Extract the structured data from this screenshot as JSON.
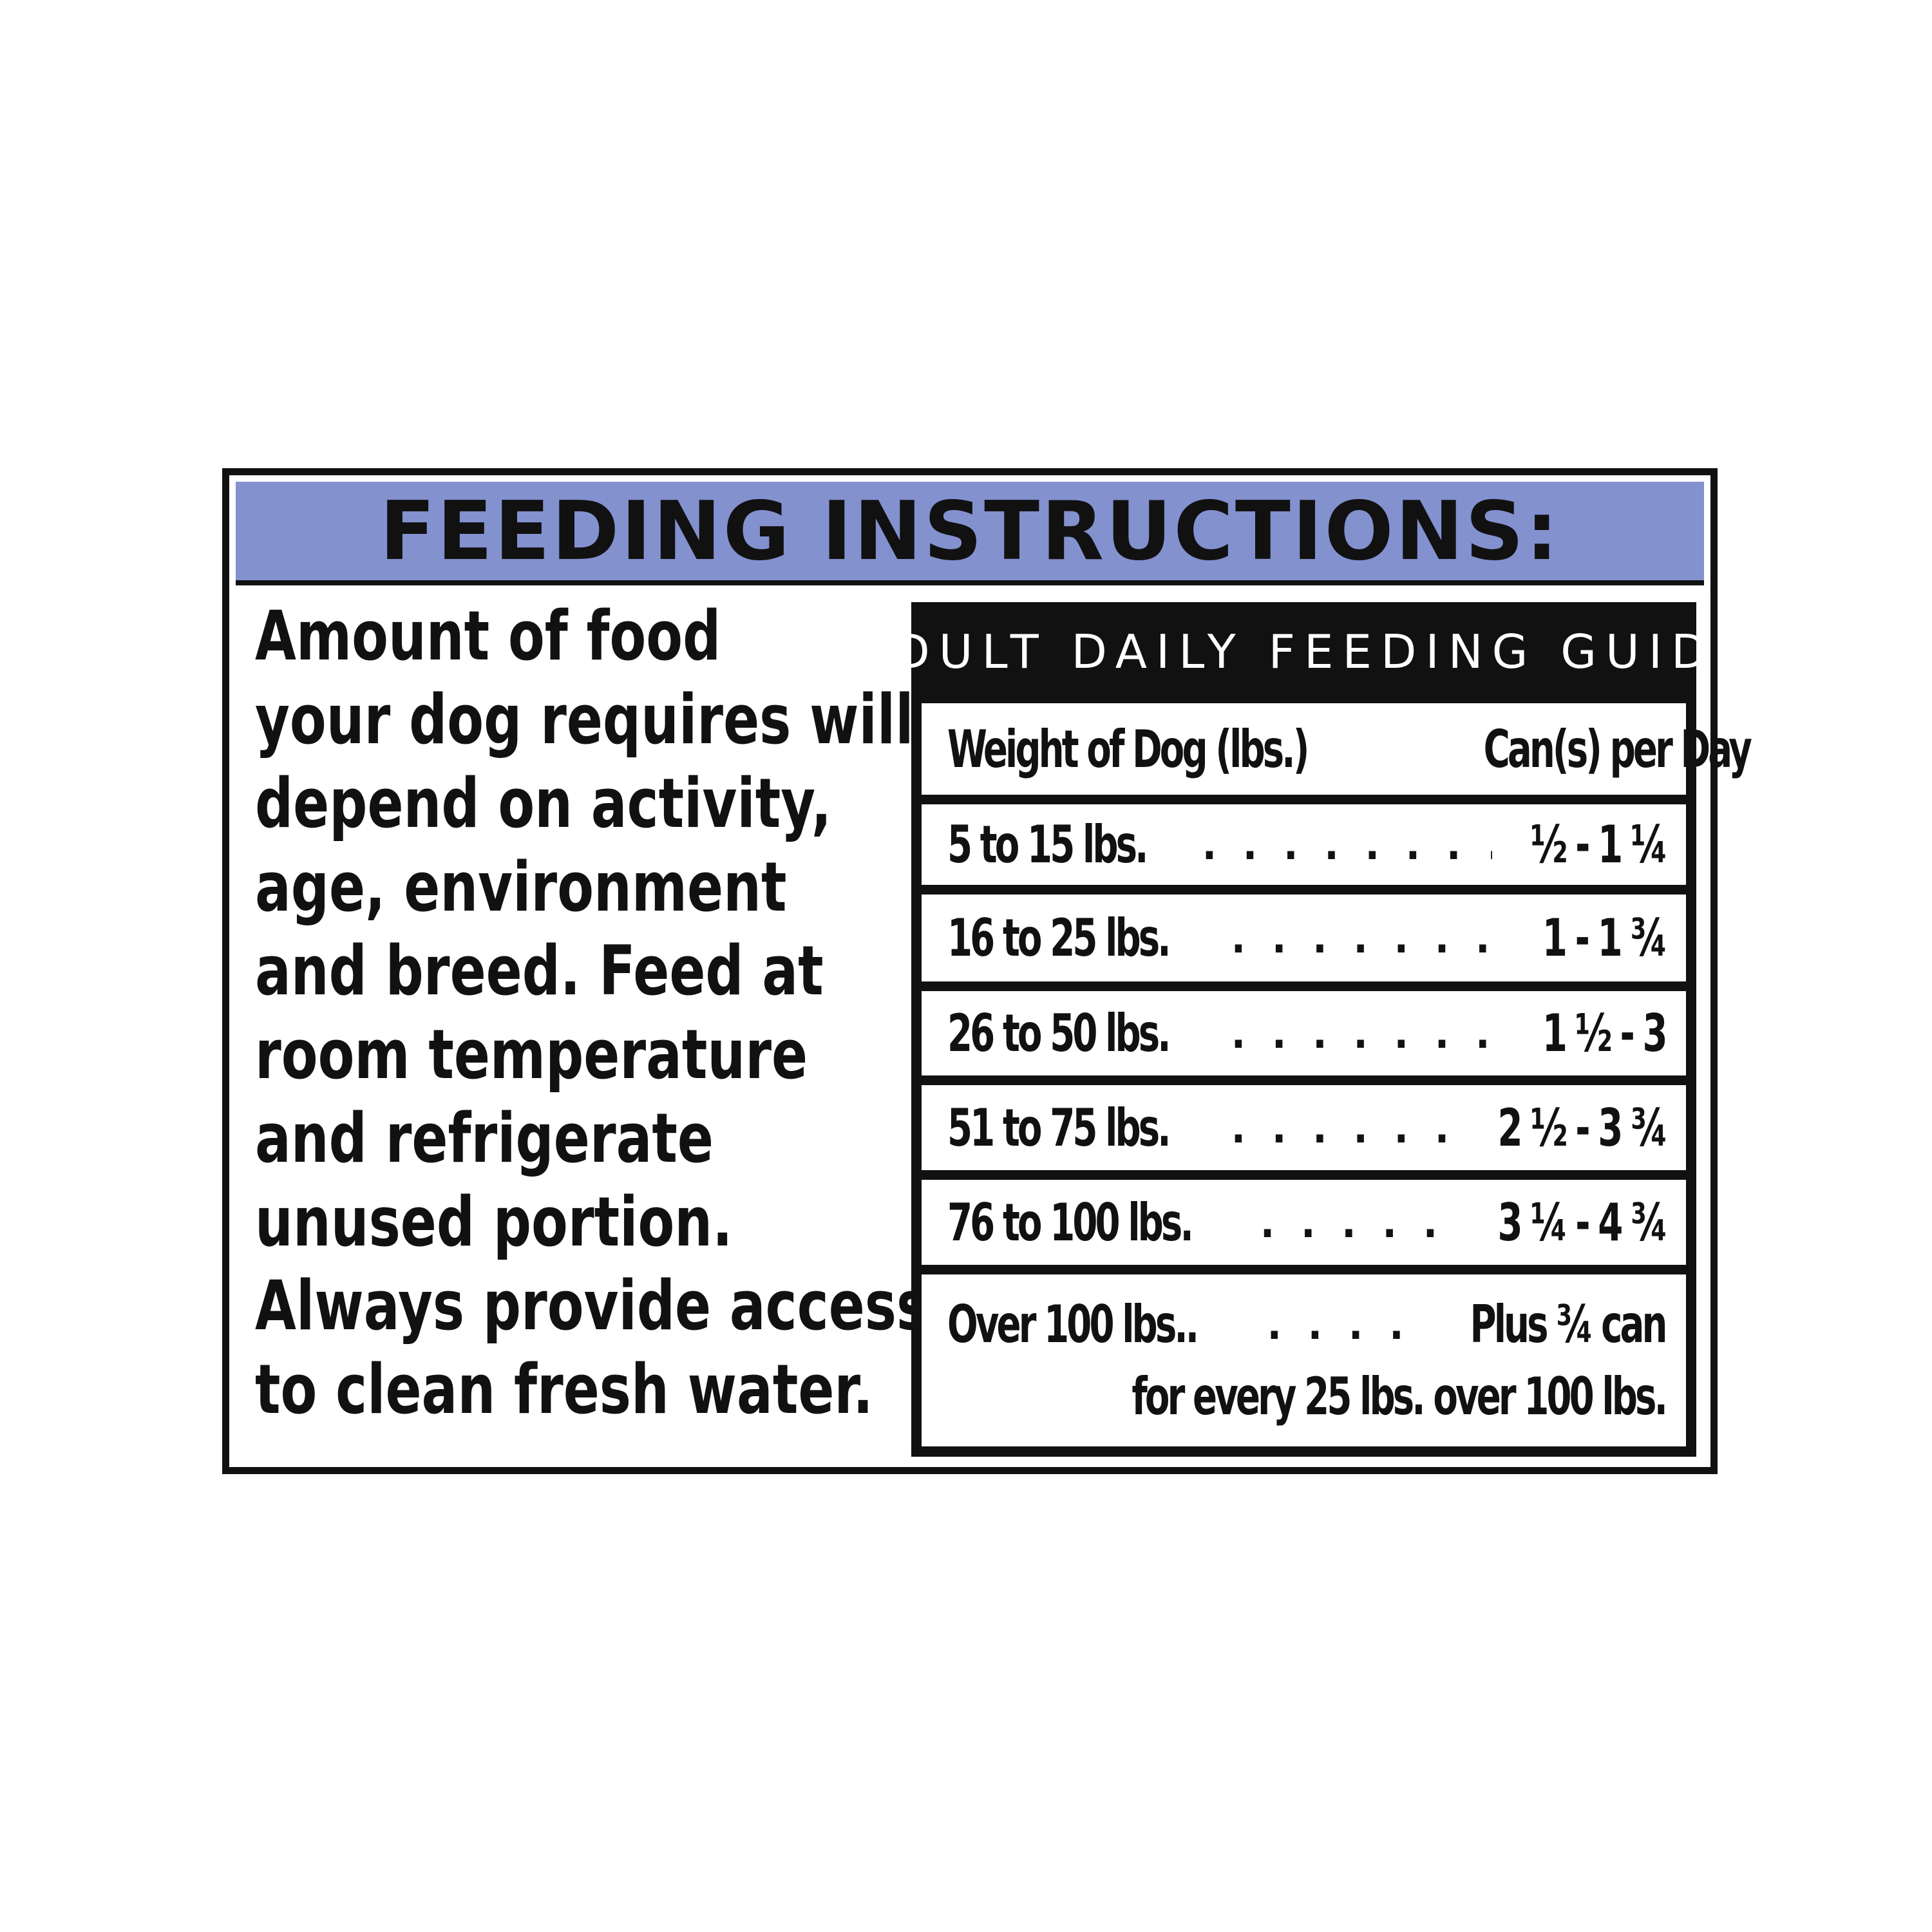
{
  "colors": {
    "header_band": "#8391cf",
    "ink": "#111111",
    "background": "#ffffff"
  },
  "header": {
    "title": "FEEDING INSTRUCTIONS:"
  },
  "instructions": {
    "lines": [
      "Amount of food",
      "your dog requires will",
      "depend on activity,",
      "age, environment",
      "and breed. Feed at",
      "room temperature",
      "and refrigerate",
      "unused portion.",
      "Always provide access",
      "to clean fresh water."
    ]
  },
  "guide": {
    "title": "ADULT DAILY FEEDING GUIDE",
    "columns": [
      "Weight of Dog (lbs.)",
      "Can(s) per Day"
    ],
    "rows": [
      {
        "weight": "5 to 15 lbs.",
        "dots": ". . . . . . . . . . . . .",
        "cans": "½ - 1 ¼"
      },
      {
        "weight": "16 to 25 lbs.",
        "dots": ". . . . . . . . . . . .",
        "cans": "1 - 1 ¾"
      },
      {
        "weight": "26 to 50 lbs.",
        "dots": ". . . . . . . . . . . .",
        "cans": "1 ½ - 3"
      },
      {
        "weight": "51 to 75 lbs.",
        "dots": ". . . . . . . . . .",
        "cans": "2 ½ - 3 ¾"
      },
      {
        "weight": "76 to 100 lbs.",
        "dots": ". . . . . . . . .",
        "cans": "3 ¼ - 4 ¾"
      }
    ],
    "last_row": {
      "weight": "Over 100 lbs..",
      "dots": ". . . . . . . .",
      "cans": "Plus ¾ can",
      "note": "for every 25 lbs. over 100 lbs."
    }
  }
}
